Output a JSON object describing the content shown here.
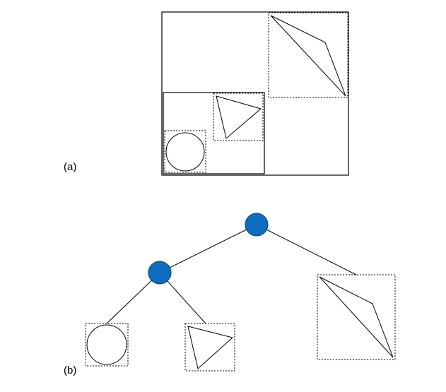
{
  "panels": {
    "a": {
      "label": "(a)"
    },
    "b": {
      "label": "(b)"
    }
  },
  "colors": {
    "internal_node": "#0f6cbf",
    "line": "#000000",
    "background": "#ffffff"
  }
}
